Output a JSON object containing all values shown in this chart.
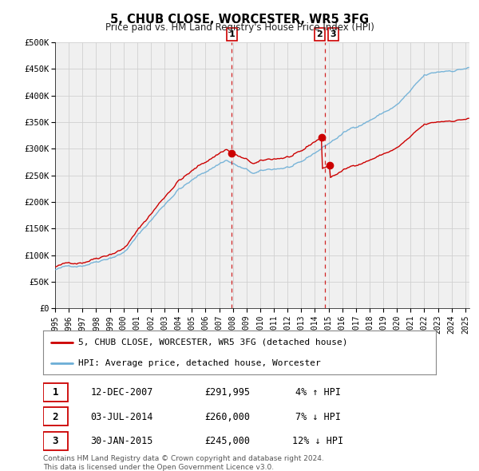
{
  "title": "5, CHUB CLOSE, WORCESTER, WR5 3FG",
  "subtitle": "Price paid vs. HM Land Registry's House Price Index (HPI)",
  "legend_line1": "5, CHUB CLOSE, WORCESTER, WR5 3FG (detached house)",
  "legend_line2": "HPI: Average price, detached house, Worcester",
  "footer_line1": "Contains HM Land Registry data © Crown copyright and database right 2024.",
  "footer_line2": "This data is licensed under the Open Government Licence v3.0.",
  "transactions": [
    {
      "num": 1,
      "date": "12-DEC-2007",
      "price": "£291,995",
      "pct": "4%",
      "dir": "↑",
      "year": 2007.92
    },
    {
      "num": 2,
      "date": "03-JUL-2014",
      "price": "£260,000",
      "pct": "7%",
      "dir": "↓",
      "year": 2014.5
    },
    {
      "num": 3,
      "date": "30-JAN-2015",
      "price": "£245,000",
      "pct": "12%",
      "dir": "↓",
      "year": 2015.08
    }
  ],
  "sale_values": [
    291995,
    260000,
    245000
  ],
  "sale_years": [
    2007.92,
    2014.5,
    2015.08
  ],
  "vline1": 2007.92,
  "vline2": 2014.75,
  "hpi_color": "#6baed6",
  "price_color": "#cc0000",
  "dot_color": "#cc0000",
  "vline_color": "#cc0000",
  "grid_color": "#d0d0d0",
  "ylim": [
    0,
    500000
  ],
  "xlim_start": 1995.0,
  "xlim_end": 2025.3,
  "background_color": "#ffffff",
  "chart_bg_color": "#f0f0f0"
}
